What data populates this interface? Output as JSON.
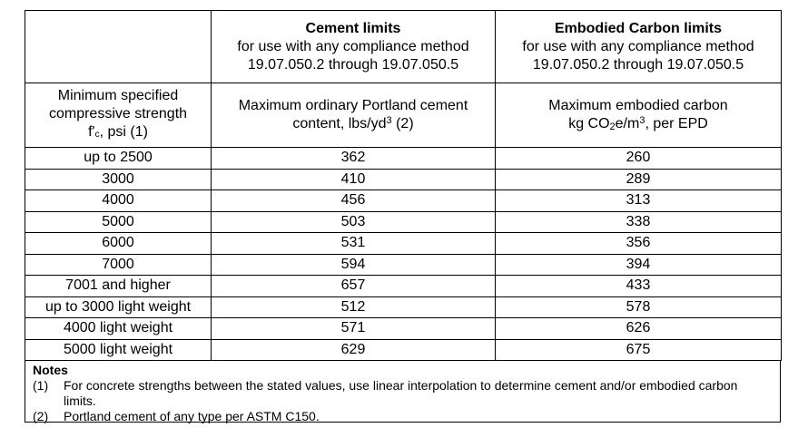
{
  "header": {
    "cement": {
      "title": "Cement limits",
      "line1": "for use with any compliance method",
      "line2": "19.07.050.2 through 19.07.050.5"
    },
    "carbon": {
      "title": "Embodied Carbon limits",
      "line1": "for use with any compliance method",
      "line2": "19.07.050.2 through 19.07.050.5"
    }
  },
  "subheader": {
    "col1": {
      "line1": "Minimum specified",
      "line2": "compressive strength",
      "fc": "f'",
      "fc_sub": "c",
      "fc_rest": ", psi  (1)"
    },
    "col2": {
      "line1": "Maximum ordinary Portland cement",
      "line2a": "content, lbs/yd",
      "line2_sup": "3",
      "line2b": " (2)"
    },
    "col3": {
      "line1": "Maximum embodied carbon",
      "line2a": "kg CO",
      "line2_sub": "2",
      "line2b": "e/m",
      "line2_sup": "3",
      "line2c": ", per EPD"
    }
  },
  "rows": [
    {
      "strength": "up to 2500",
      "cement": "362",
      "carbon": "260"
    },
    {
      "strength": "3000",
      "cement": "410",
      "carbon": "289"
    },
    {
      "strength": "4000",
      "cement": "456",
      "carbon": "313"
    },
    {
      "strength": "5000",
      "cement": "503",
      "carbon": "338"
    },
    {
      "strength": "6000",
      "cement": "531",
      "carbon": "356"
    },
    {
      "strength": "7000",
      "cement": "594",
      "carbon": "394"
    },
    {
      "strength": "7001 and higher",
      "cement": "657",
      "carbon": "433"
    },
    {
      "strength": "up to 3000 light weight",
      "cement": "512",
      "carbon": "578"
    },
    {
      "strength": "4000 light weight",
      "cement": "571",
      "carbon": "626"
    },
    {
      "strength": "5000 light weight",
      "cement": "629",
      "carbon": "675"
    }
  ],
  "notes": {
    "title": "Notes",
    "items": [
      {
        "num": "(1)",
        "text": "For concrete strengths between the stated values, use linear interpolation to determine cement and/or embodied carbon limits."
      },
      {
        "num": "(2)",
        "text": "Portland cement of any type per ASTM C150."
      }
    ]
  }
}
